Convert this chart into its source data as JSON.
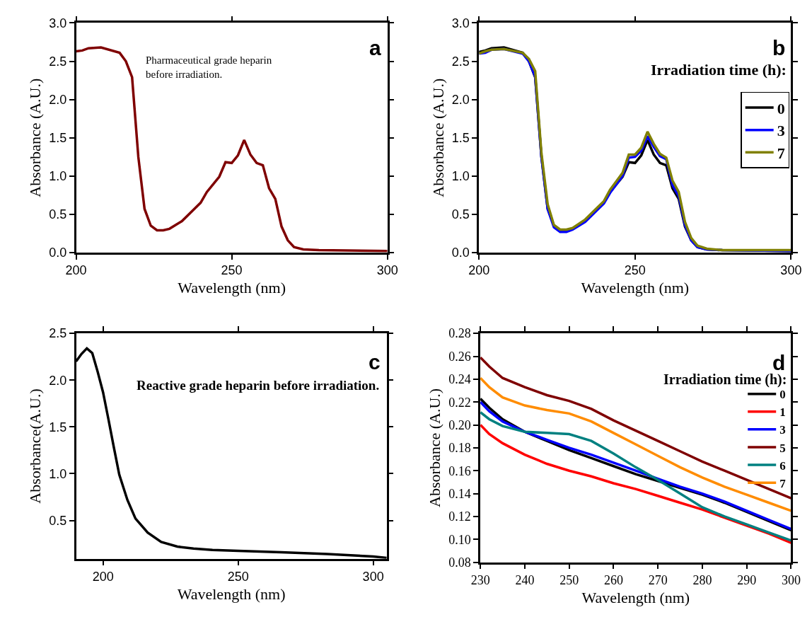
{
  "chart_data": [
    {
      "type": "line",
      "xlabel": "Wavelength (nm)",
      "ylabel": "Absorbance (A.U.)",
      "annotations": [
        "a",
        "Pharmaceutical grade heparin\nbefore irradiation."
      ],
      "x": [
        200,
        202,
        204,
        208,
        214,
        216,
        218,
        220,
        222,
        224,
        226,
        228,
        230,
        234,
        238,
        240,
        242,
        246,
        248,
        250,
        252,
        254,
        256,
        258,
        260,
        262,
        264,
        266,
        268,
        270,
        273,
        278,
        300
      ],
      "series": [
        {
          "color": "#7f0000",
          "values": [
            2.63,
            2.64,
            2.67,
            2.68,
            2.61,
            2.5,
            2.29,
            1.25,
            0.57,
            0.35,
            0.29,
            0.29,
            0.31,
            0.41,
            0.57,
            0.65,
            0.79,
            0.99,
            1.18,
            1.17,
            1.27,
            1.47,
            1.28,
            1.17,
            1.14,
            0.84,
            0.7,
            0.34,
            0.16,
            0.07,
            0.04,
            0.03,
            0.02
          ]
        }
      ],
      "xlim": [
        200,
        300
      ],
      "xticks": [
        200,
        250,
        300
      ],
      "ylim": [
        0,
        3
      ],
      "yticks": [
        {
          "value": 0,
          "label": "0.0"
        },
        {
          "value": 0.5,
          "label": "0.5"
        },
        {
          "value": 1,
          "label": "1.0"
        },
        {
          "value": 1.5,
          "label": "1.5"
        },
        {
          "value": 2,
          "label": "2.0"
        },
        {
          "value": 2.5,
          "label": "2.5"
        },
        {
          "value": 3,
          "label": "3.0"
        }
      ],
      "legend": false
    },
    {
      "type": "line",
      "xlabel": "Wavelength (nm)",
      "ylabel": "Absorbance (A.U.)",
      "annotations": [
        "b"
      ],
      "legend_title": "Irradiation time (h):",
      "x": [
        200,
        202,
        204,
        208,
        214,
        216,
        218,
        220,
        222,
        224,
        226,
        228,
        230,
        234,
        238,
        240,
        242,
        246,
        248,
        250,
        252,
        254,
        256,
        258,
        260,
        262,
        264,
        266,
        268,
        270,
        273,
        278,
        300
      ],
      "series": [
        {
          "name": "0",
          "color": "#000000",
          "values": [
            2.62,
            2.64,
            2.67,
            2.68,
            2.61,
            2.5,
            2.29,
            1.25,
            0.57,
            0.35,
            0.29,
            0.29,
            0.31,
            0.41,
            0.57,
            0.65,
            0.79,
            0.99,
            1.18,
            1.17,
            1.27,
            1.47,
            1.28,
            1.17,
            1.14,
            0.84,
            0.7,
            0.34,
            0.16,
            0.07,
            0.04,
            0.03,
            0.02
          ]
        },
        {
          "name": "3",
          "color": "#0000ff",
          "values": [
            2.6,
            2.61,
            2.65,
            2.66,
            2.6,
            2.5,
            2.3,
            1.25,
            0.57,
            0.33,
            0.27,
            0.27,
            0.3,
            0.4,
            0.56,
            0.64,
            0.78,
            1.0,
            1.24,
            1.25,
            1.33,
            1.52,
            1.38,
            1.26,
            1.22,
            0.88,
            0.74,
            0.36,
            0.16,
            0.07,
            0.04,
            0.03,
            0.02
          ]
        },
        {
          "name": "7",
          "color": "#808000",
          "values": [
            2.6,
            2.63,
            2.65,
            2.66,
            2.61,
            2.53,
            2.37,
            1.3,
            0.63,
            0.36,
            0.3,
            0.3,
            0.32,
            0.43,
            0.59,
            0.67,
            0.82,
            1.04,
            1.28,
            1.28,
            1.37,
            1.58,
            1.42,
            1.29,
            1.24,
            0.94,
            0.79,
            0.4,
            0.19,
            0.09,
            0.05,
            0.03,
            0.03
          ]
        }
      ],
      "xlim": [
        200,
        300
      ],
      "xticks": [
        200,
        250,
        300
      ],
      "ylim": [
        0,
        3
      ],
      "yticks": [
        {
          "value": 0,
          "label": "0.0"
        },
        {
          "value": 0.5,
          "label": "0.5"
        },
        {
          "value": 1,
          "label": "1.0"
        },
        {
          "value": 1.5,
          "label": "1.5"
        },
        {
          "value": 2,
          "label": "2.0"
        },
        {
          "value": 2.5,
          "label": "2.5"
        },
        {
          "value": 3,
          "label": "3.0"
        }
      ],
      "legend": "right"
    },
    {
      "type": "line",
      "xlabel": "Wavelength (nm)",
      "ylabel": "Absorbance(A.U.)",
      "annotations": [
        "c",
        "Reactive grade heparin before irradiation."
      ],
      "x": [
        190,
        192,
        194,
        196,
        198,
        200,
        202,
        204,
        206,
        209,
        212,
        216.5,
        221.5,
        227.5,
        233.5,
        240.5,
        250,
        266,
        283,
        300,
        305
      ],
      "series": [
        {
          "color": "#000000",
          "values": [
            2.2,
            2.28,
            2.34,
            2.29,
            2.09,
            1.87,
            1.58,
            1.28,
            0.99,
            0.72,
            0.52,
            0.37,
            0.27,
            0.22,
            0.2,
            0.185,
            0.175,
            0.16,
            0.14,
            0.115,
            0.1
          ]
        }
      ],
      "xlim": [
        190,
        305
      ],
      "xticks": [
        200,
        250,
        300
      ],
      "ylim": [
        0.09,
        2.5
      ],
      "yticks": [
        0.5,
        {
          "value": 1,
          "label": "1.0"
        },
        1.5,
        {
          "value": 2,
          "label": "2.0"
        },
        2.5
      ],
      "legend": false
    },
    {
      "type": "line",
      "xlabel": "Wavelength (nm)",
      "ylabel": "Absorbance (A.U.)",
      "annotations": [
        "d"
      ],
      "legend_title": "Irradiation time (h):",
      "x": [
        230,
        232,
        235,
        240,
        245,
        250,
        255,
        260,
        265,
        270,
        275,
        280,
        285,
        290,
        295,
        300
      ],
      "series": [
        {
          "name": "0",
          "color": "#000000",
          "values": [
            0.223,
            0.215,
            0.205,
            0.194,
            0.186,
            0.178,
            0.171,
            0.164,
            0.157,
            0.151,
            0.145,
            0.139,
            0.132,
            0.124,
            0.116,
            0.108
          ]
        },
        {
          "name": "1",
          "color": "#ff0000",
          "values": [
            0.2,
            0.192,
            0.184,
            0.174,
            0.166,
            0.16,
            0.155,
            0.149,
            0.144,
            0.138,
            0.132,
            0.126,
            0.119,
            0.112,
            0.105,
            0.097
          ]
        },
        {
          "name": "3",
          "color": "#0000ff",
          "values": [
            0.22,
            0.212,
            0.203,
            0.194,
            0.187,
            0.18,
            0.174,
            0.167,
            0.16,
            0.153,
            0.146,
            0.14,
            0.133,
            0.125,
            0.117,
            0.109
          ]
        },
        {
          "name": "5",
          "color": "#7f0000",
          "values": [
            0.259,
            0.251,
            0.241,
            0.233,
            0.226,
            0.221,
            0.214,
            0.204,
            0.195,
            0.186,
            0.177,
            0.168,
            0.16,
            0.152,
            0.144,
            0.136
          ]
        },
        {
          "name": "6",
          "color": "#008080",
          "values": [
            0.211,
            0.205,
            0.199,
            0.194,
            0.193,
            0.192,
            0.186,
            0.175,
            0.163,
            0.152,
            0.14,
            0.128,
            0.12,
            0.113,
            0.106,
            0.099
          ]
        },
        {
          "name": "7",
          "color": "#ff8c00",
          "values": [
            0.241,
            0.233,
            0.224,
            0.217,
            0.213,
            0.21,
            0.203,
            0.193,
            0.183,
            0.173,
            0.163,
            0.154,
            0.146,
            0.139,
            0.132,
            0.125
          ]
        }
      ],
      "xlim": [
        230,
        300
      ],
      "xticks": [
        230,
        240,
        250,
        260,
        270,
        280,
        290,
        300
      ],
      "ylim": [
        0.08,
        0.28
      ],
      "yticks": [
        {
          "value": 0.08,
          "label": "0.08"
        },
        {
          "value": 0.1,
          "label": "0.10"
        },
        {
          "value": 0.12,
          "label": "0.12"
        },
        {
          "value": 0.14,
          "label": "0.14"
        },
        {
          "value": 0.16,
          "label": "0.16"
        },
        {
          "value": 0.18,
          "label": "0.18"
        },
        {
          "value": 0.2,
          "label": "0.20"
        },
        {
          "value": 0.22,
          "label": "0.22"
        },
        {
          "value": 0.24,
          "label": "0.24"
        },
        {
          "value": 0.26,
          "label": "0.26"
        },
        {
          "value": 0.28,
          "label": "0.28"
        }
      ],
      "legend": "right"
    }
  ]
}
